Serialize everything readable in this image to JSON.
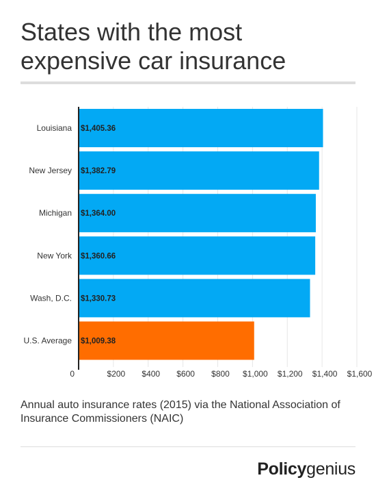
{
  "header": {
    "title_line1": "States with the most",
    "title_line2": "expensive car insurance"
  },
  "caption": {
    "line1": "Annual auto insurance rates (2015) via the National Association of",
    "line2": "Insurance Commissioners (NAIC)"
  },
  "brand": {
    "part1": "Policy",
    "part2": "genius"
  },
  "colors": {
    "bar": "#03a9f4",
    "average_bar": "#ff6d00",
    "axis": "#222222",
    "gridline": "#e6e6e6",
    "divider": "#dddddd"
  },
  "chart_data": {
    "type": "bar",
    "orientation": "horizontal",
    "categories": [
      "Louisiana",
      "New Jersey",
      "Michigan",
      "New York",
      "Wash, D.C.",
      "U.S. Average"
    ],
    "values": [
      1405.36,
      1382.79,
      1364.0,
      1360.66,
      1330.73,
      1009.38
    ],
    "data_labels": [
      "$1,405.36",
      "$1,382.79",
      "$1,364.00",
      "$1,360.66",
      "$1,330.73",
      "$1,009.38"
    ],
    "highlight_index": 5,
    "xlim": [
      0,
      1600
    ],
    "xticks": [
      0,
      200,
      400,
      600,
      800,
      1000,
      1200,
      1400,
      1600
    ],
    "xtick_labels": [
      "0",
      "$200",
      "$400",
      "$600",
      "$800",
      "$1,000",
      "$1,200",
      "$1,400",
      "$1,600"
    ],
    "grid": true,
    "legend": "none"
  }
}
